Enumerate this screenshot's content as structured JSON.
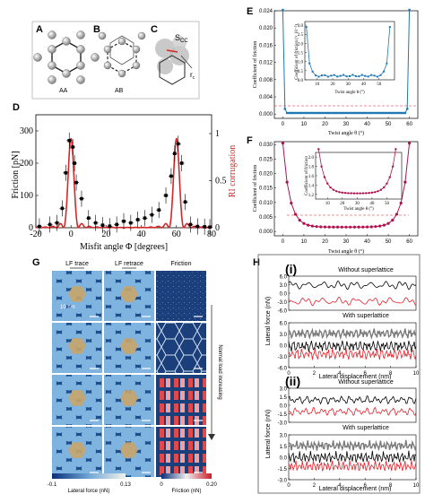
{
  "panels": {
    "A": {
      "letter": "A",
      "label": "AA"
    },
    "B": {
      "letter": "B",
      "label": "AB"
    },
    "C": {
      "letter": "C",
      "s_label": "S",
      "s_sub": "CC",
      "r_label": "r",
      "r_sub": "c"
    },
    "D": {
      "letter": "D",
      "ylabel": "Friction [pN]",
      "y2label": "RI corrugation",
      "xlabel": "Misfit angle Φ [degrees]",
      "xticks": [
        "-20",
        "0",
        "20",
        "40",
        "60",
        "80"
      ],
      "yticks": [
        "0",
        "100",
        "200",
        "300"
      ],
      "y2ticks": [
        "0",
        "0.5",
        "1"
      ]
    },
    "E": {
      "letter": "E",
      "ylabel": "Coefficient of friction",
      "xlabel": "Twist angle θ (°)",
      "xticks": [
        "0",
        "10",
        "20",
        "30",
        "40",
        "50",
        "60"
      ],
      "yticks": [
        "0.000",
        "0.004",
        "0.008",
        "0.012",
        "0.016",
        "0.020",
        "0.024"
      ],
      "inset_ylabel": "Coefficient of friction (× 10⁻³)",
      "inset_xlabel": "Twist angle θ (°)",
      "inset_xticks": [
        "10",
        "20",
        "30",
        "40",
        "50"
      ],
      "inset_yticks": [
        "0.0",
        "0.5",
        "1.0",
        "1.5",
        "2.0",
        "2.5",
        "3.0"
      ]
    },
    "F": {
      "letter": "F",
      "ylabel": "Coefficient of friction",
      "xlabel": "Twist angle θ (°)",
      "xticks": [
        "0",
        "10",
        "20",
        "30",
        "40",
        "50",
        "60"
      ],
      "yticks": [
        "0.000",
        "0.005",
        "0.010",
        "0.015",
        "0.020",
        "0.025",
        "0.030"
      ],
      "inset_ylabel": "Coefficient of friction",
      "inset_xlabel": "Twist angle θ (°)",
      "inset_xticks": [
        "10",
        "20",
        "30",
        "40",
        "50"
      ],
      "inset_yticks": [
        "1.2",
        "1.4",
        "1.6",
        "1.8",
        "2.0"
      ]
    },
    "G": {
      "letter": "G",
      "col_titles": [
        "LF trace",
        "LF retrace",
        "Friction"
      ],
      "scale_label": "10 nm",
      "side_label": "Normal load increasing",
      "cbar1": {
        "min": "-0.1",
        "max": "0.13",
        "label": "Lateral force (nN)"
      },
      "cbar2": {
        "min": "0",
        "max": "0.20",
        "label": "Friction (nN)"
      }
    },
    "H": {
      "letter": "H",
      "ylabel": "Lateral force (nN)",
      "xlabel": "Lateral displacement (nm)",
      "sub_i": "(i)",
      "sub_ii": "(ii)",
      "without": "Without superlattice",
      "with": "With superlattice",
      "yticks_top": [
        "6.0",
        "3.0",
        "0.0",
        "-3.0",
        "-6.0"
      ],
      "yticks_bot": [
        "3.0",
        "1.5",
        "0.0",
        "-1.5",
        "-3.0"
      ],
      "xticks": [
        "0",
        "2",
        "4",
        "6",
        "8",
        "10"
      ]
    }
  },
  "colors": {
    "panelE_series": "#1f77b4",
    "panelF_series": "#b0124f",
    "panelD_curve": "#d62728",
    "panelH_red": "#e8202a",
    "afm_blue": "#2f6fb4",
    "afm_red": "#e04a4a",
    "hexagon_fill": "#c9a46a"
  }
}
